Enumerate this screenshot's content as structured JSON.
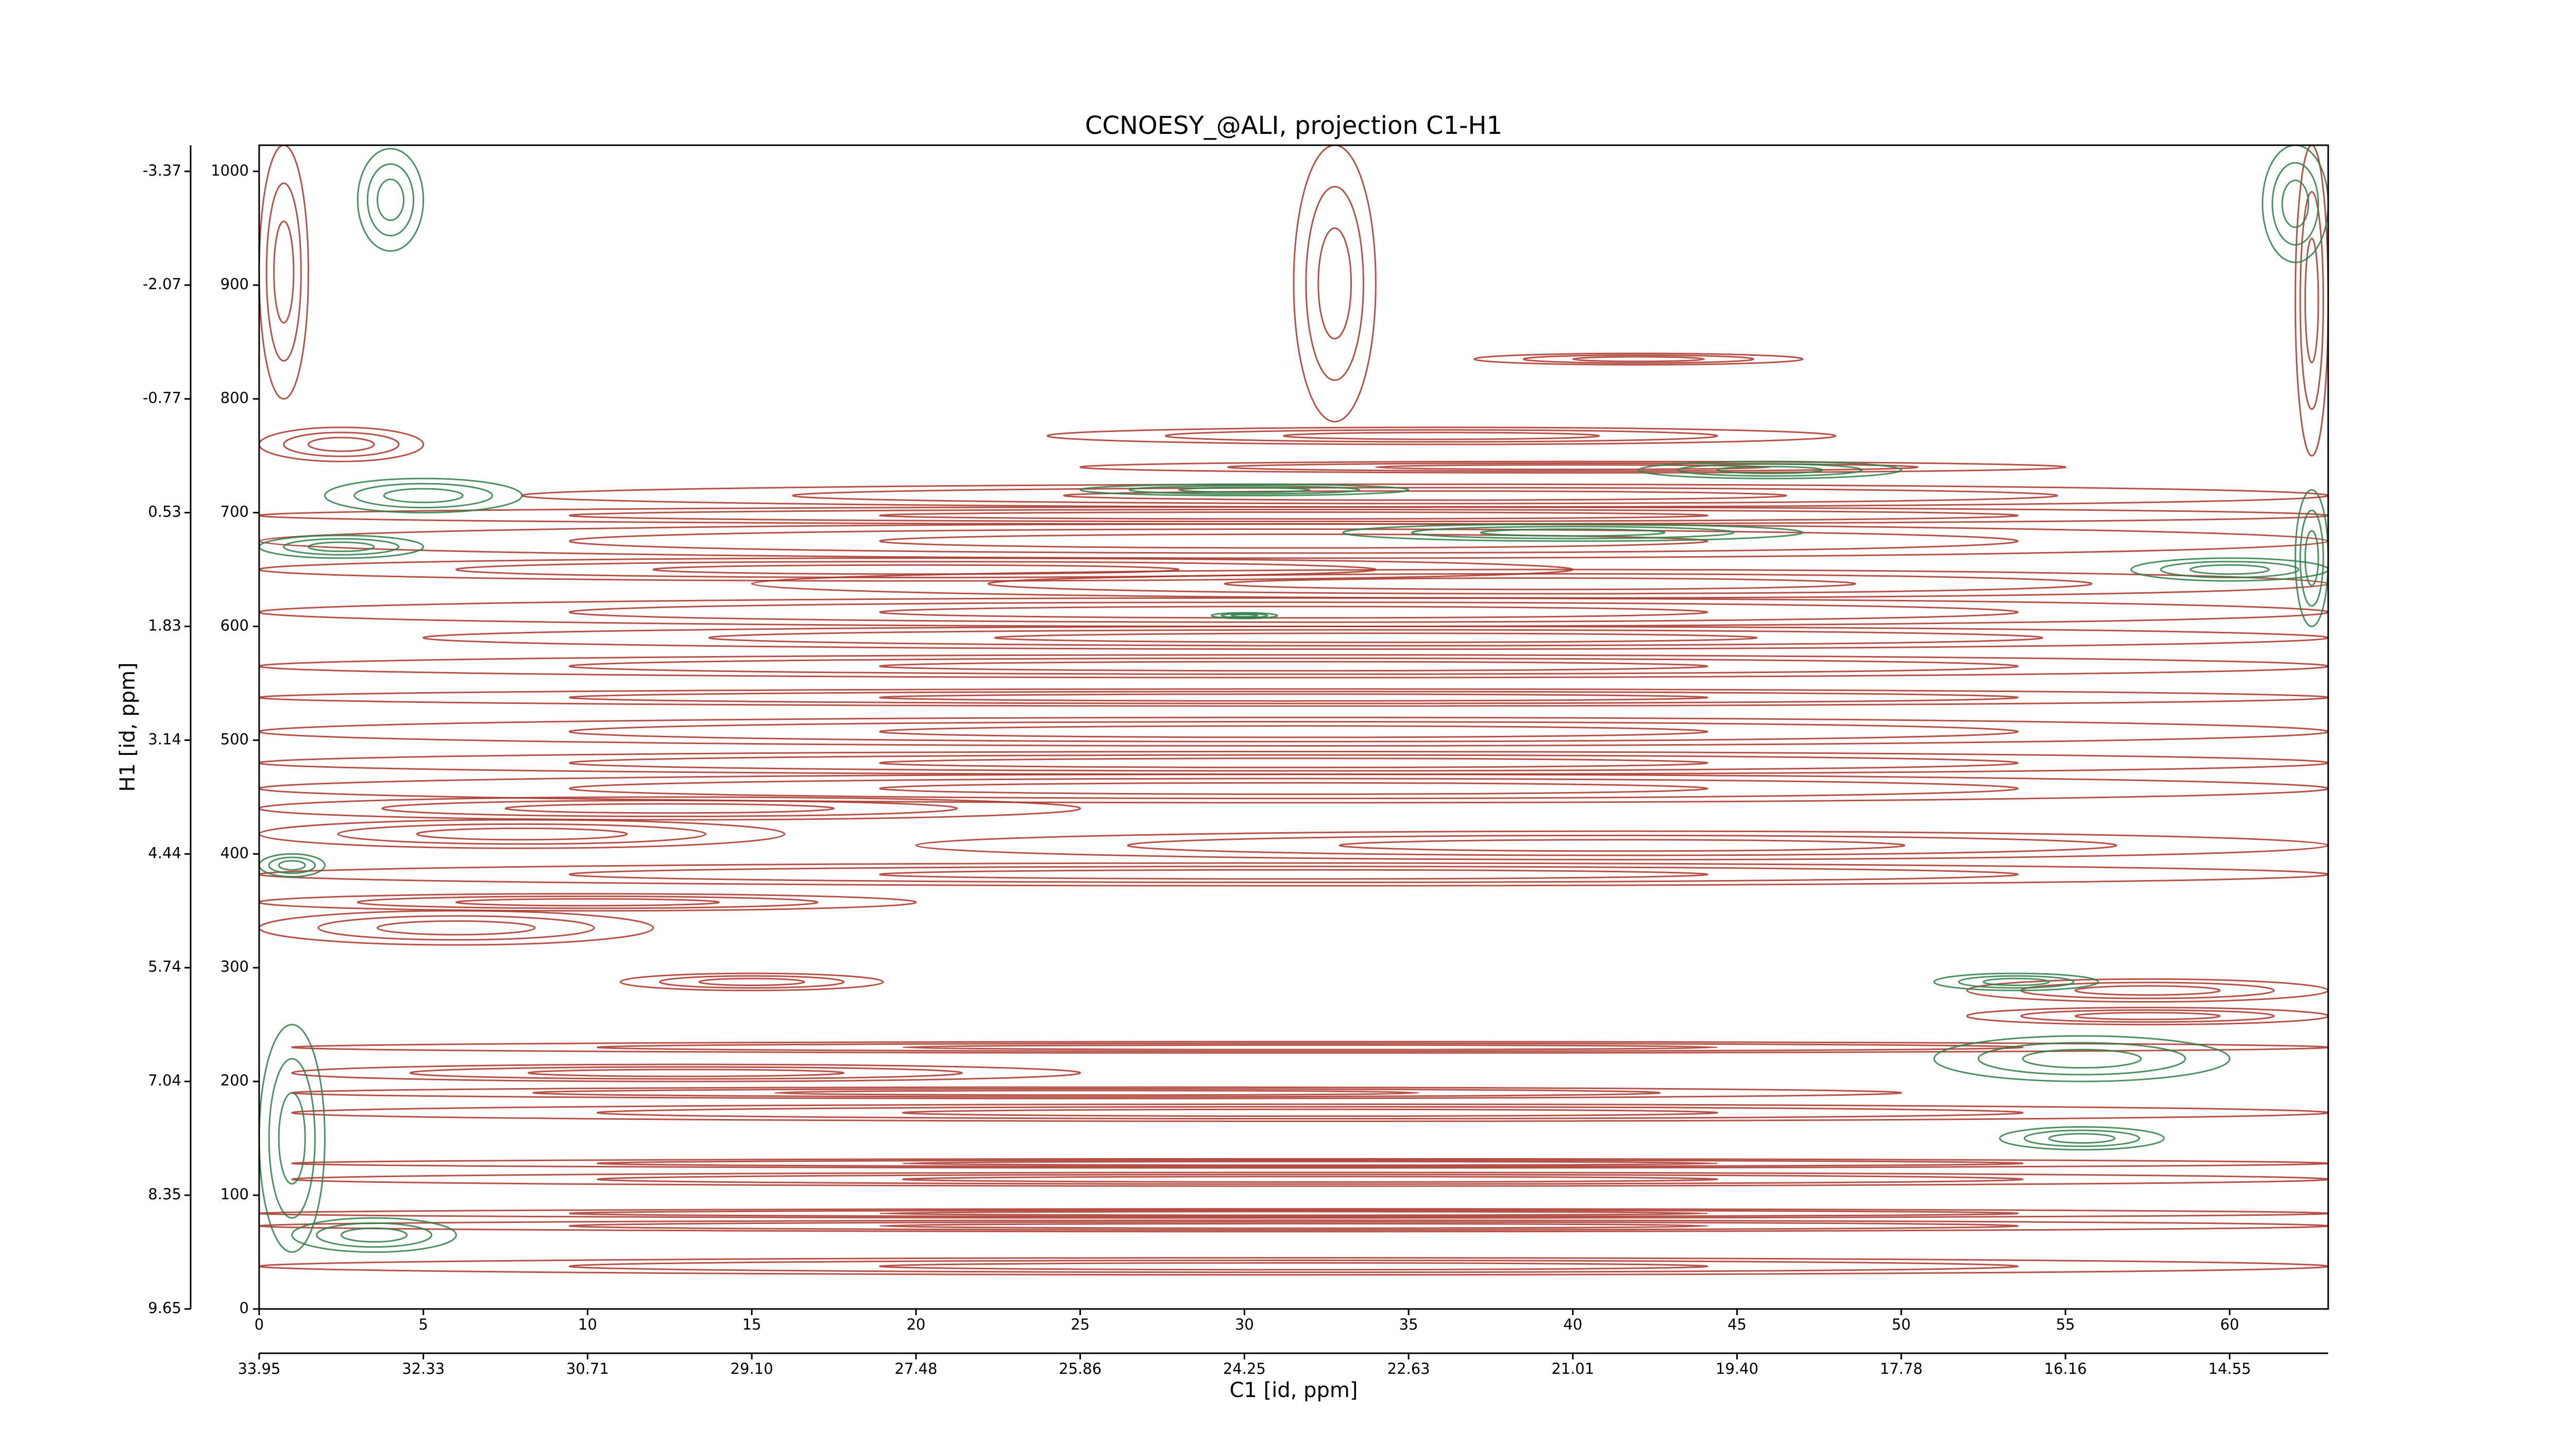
{
  "chart_data": {
    "type": "contour",
    "title": "CCNOESY_@ALI, projection C1-H1",
    "xlabel": "C1 [id, ppm]",
    "ylabel": "H1 [id, ppm]",
    "xlim": [
      0,
      63
    ],
    "ylim": [
      0,
      1023
    ],
    "xticks": [
      0,
      5,
      10,
      15,
      20,
      25,
      30,
      35,
      40,
      45,
      50,
      55,
      60
    ],
    "yticks": [
      0,
      100,
      200,
      300,
      400,
      500,
      600,
      700,
      800,
      900,
      1000
    ],
    "x2ticks": [
      {
        "value": 0,
        "label": "33.95"
      },
      {
        "value": 5,
        "label": "32.33"
      },
      {
        "value": 10,
        "label": "30.71"
      },
      {
        "value": 15,
        "label": "29.10"
      },
      {
        "value": 20,
        "label": "27.48"
      },
      {
        "value": 25,
        "label": "25.86"
      },
      {
        "value": 30,
        "label": "24.25"
      },
      {
        "value": 35,
        "label": "22.63"
      },
      {
        "value": 40,
        "label": "21.01"
      },
      {
        "value": 45,
        "label": "19.40"
      },
      {
        "value": 50,
        "label": "17.78"
      },
      {
        "value": 55,
        "label": "16.16"
      },
      {
        "value": 60,
        "label": "14.55"
      }
    ],
    "y2ticks": [
      {
        "value": 0,
        "label": "9.65"
      },
      {
        "value": 100,
        "label": "8.35"
      },
      {
        "value": 200,
        "label": "7.04"
      },
      {
        "value": 300,
        "label": "5.74"
      },
      {
        "value": 400,
        "label": "4.44"
      },
      {
        "value": 500,
        "label": "3.14"
      },
      {
        "value": 600,
        "label": "1.83"
      },
      {
        "value": 700,
        "label": "0.53"
      },
      {
        "value": 800,
        "label": "-0.77"
      },
      {
        "value": 900,
        "label": "-2.07"
      },
      {
        "value": 1000,
        "label": "-3.37"
      }
    ],
    "series": [
      {
        "color": "#a83228",
        "bands": [
          [
            0,
            63,
            30,
            45
          ],
          [
            0,
            63,
            68,
            78
          ],
          [
            0,
            63,
            80,
            88
          ],
          [
            1,
            63,
            108,
            120
          ],
          [
            1,
            63,
            124,
            132
          ],
          [
            1,
            63,
            165,
            180
          ],
          [
            1,
            50,
            185,
            195
          ],
          [
            1,
            25,
            200,
            215
          ],
          [
            1,
            63,
            225,
            235
          ],
          [
            0,
            12,
            320,
            350
          ],
          [
            0,
            20,
            350,
            365
          ],
          [
            0,
            63,
            372,
            392
          ],
          [
            20,
            63,
            395,
            420
          ],
          [
            0,
            16,
            405,
            430
          ],
          [
            0,
            25,
            430,
            450
          ],
          [
            0,
            63,
            445,
            470
          ],
          [
            0,
            63,
            470,
            490
          ],
          [
            0,
            63,
            495,
            520
          ],
          [
            0,
            63,
            530,
            545
          ],
          [
            0,
            63,
            555,
            575
          ],
          [
            5,
            63,
            580,
            600
          ],
          [
            0,
            63,
            600,
            625
          ],
          [
            15,
            63,
            625,
            650
          ],
          [
            0,
            40,
            640,
            660
          ],
          [
            0,
            63,
            660,
            690
          ],
          [
            0,
            63,
            690,
            705
          ],
          [
            8,
            63,
            705,
            725
          ],
          [
            25,
            55,
            735,
            745
          ],
          [
            0,
            5,
            745,
            775
          ],
          [
            24,
            48,
            760,
            775
          ],
          [
            31.5,
            34,
            780,
            1023
          ],
          [
            37,
            47,
            830,
            840
          ],
          [
            0,
            1.5,
            800,
            1023
          ],
          [
            62,
            63,
            750,
            1023
          ],
          [
            11,
            19,
            280,
            295
          ],
          [
            52,
            63,
            270,
            290
          ],
          [
            52,
            63,
            250,
            265
          ]
        ]
      },
      {
        "color": "#2e7d45",
        "bands": [
          [
            0,
            2,
            50,
            250
          ],
          [
            1,
            6,
            50,
            80
          ],
          [
            53,
            58,
            140,
            160
          ],
          [
            51,
            60,
            200,
            240
          ],
          [
            51,
            56,
            280,
            295
          ],
          [
            0,
            2,
            380,
            400
          ],
          [
            3,
            5,
            930,
            1020
          ],
          [
            61,
            63,
            920,
            1023
          ],
          [
            62,
            63,
            600,
            720
          ],
          [
            25,
            35,
            715,
            725
          ],
          [
            33,
            47,
            675,
            690
          ],
          [
            2,
            8,
            700,
            730
          ],
          [
            0,
            5,
            660,
            680
          ],
          [
            42,
            50,
            730,
            745
          ],
          [
            29,
            31,
            607,
            612
          ],
          [
            57,
            63,
            640,
            660
          ]
        ]
      }
    ]
  }
}
